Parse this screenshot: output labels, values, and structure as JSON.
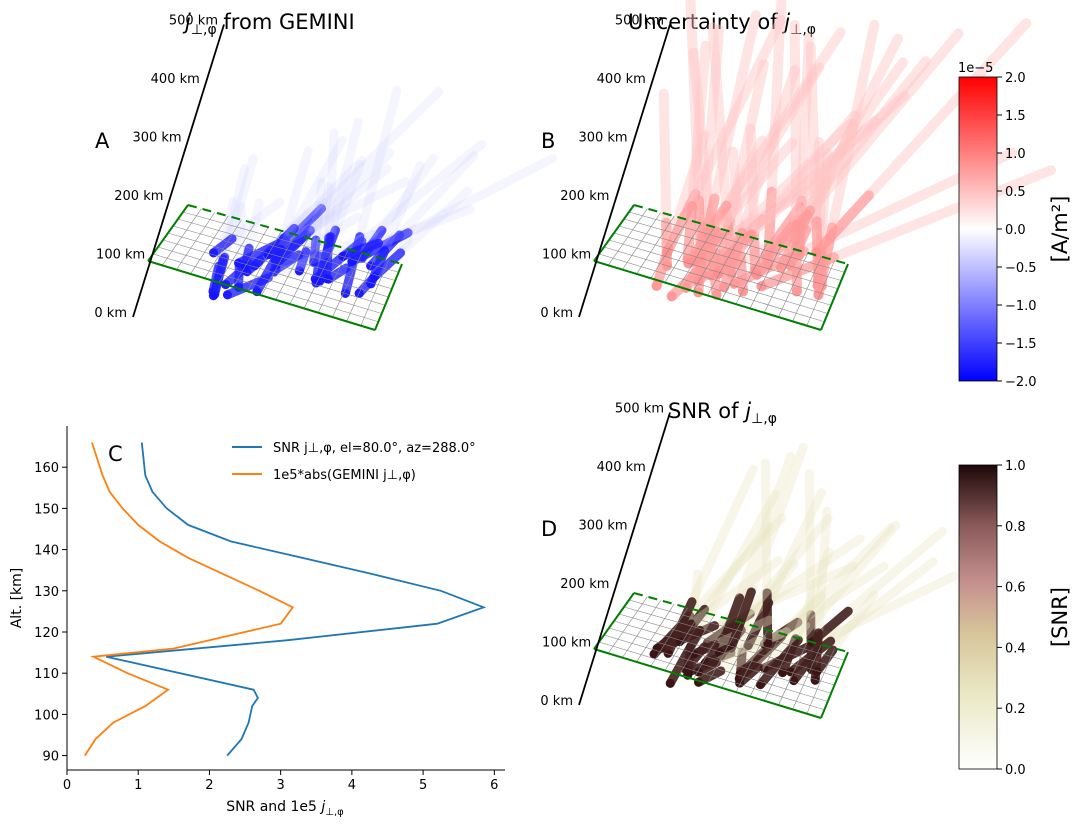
{
  "panels": {
    "A": {
      "letter": "A",
      "title_main": "j",
      "title_sub": "⊥,φ",
      "title_rest": " from GEMINI"
    },
    "B": {
      "letter": "B",
      "title_main": "Uncertainty of ",
      "title_var": "j",
      "title_sub": "⊥,φ"
    },
    "C": {
      "letter": "C"
    },
    "D": {
      "letter": "D",
      "title_main": "SNR of ",
      "title_var": "j",
      "title_sub": "⊥,φ"
    }
  },
  "altitude_labels": [
    "0 km",
    "100 km",
    "200 km",
    "300 km",
    "400 km",
    "500 km"
  ],
  "colorbars": {
    "current": {
      "label": "[A/m²]",
      "offset_text": "1e−5",
      "ticks": [
        "−2.0",
        "−1.5",
        "−1.0",
        "−0.5",
        "0.0",
        "0.5",
        "1.0",
        "1.5",
        "2.0"
      ],
      "range": [
        -2.0,
        2.0
      ],
      "colormap": "bwr",
      "colors": [
        "#0000ff",
        "#ffffff",
        "#ff0000"
      ]
    },
    "snr": {
      "label": "[SNR]",
      "ticks": [
        "0.0",
        "0.2",
        "0.4",
        "0.6",
        "0.8",
        "1.0"
      ],
      "range": [
        0.0,
        1.0
      ],
      "colormap": "pink_r",
      "colors": [
        "#ffffff",
        "#e6e4b4",
        "#c49090",
        "#8a5c5c",
        "#1e0808"
      ]
    }
  },
  "grid_color": "#008000",
  "chart_data": {
    "type": "line",
    "xlabel": "SNR and 1e5 j⊥,φ",
    "ylabel": "Alt. [km]",
    "xlim": [
      0,
      6.15
    ],
    "ylim": [
      86.5,
      170
    ],
    "xticks": [
      0,
      1,
      2,
      3,
      4,
      5,
      6
    ],
    "yticks": [
      90,
      100,
      110,
      120,
      130,
      140,
      150,
      160
    ],
    "legend_position": "top-right",
    "series": [
      {
        "name": "SNR j⊥,φ, el=80.0°, az=288.0°",
        "color": "#1f77b4",
        "x": [
          2.25,
          2.45,
          2.55,
          2.6,
          2.68,
          2.62,
          0.55,
          3.1,
          5.2,
          5.85,
          5.25,
          4.3,
          3.3,
          2.3,
          1.7,
          1.4,
          1.2,
          1.1,
          1.05
        ],
        "y": [
          90,
          94,
          98,
          102,
          104,
          106,
          114,
          118,
          122,
          126,
          130,
          134,
          138,
          142,
          146,
          150,
          154,
          158,
          166
        ]
      },
      {
        "name": "1e5*abs(GEMINI j⊥,φ)",
        "color": "#ff7f0e",
        "x": [
          0.25,
          0.4,
          0.65,
          1.1,
          1.42,
          0.85,
          0.37,
          1.5,
          2.0,
          3.0,
          3.17,
          2.7,
          2.2,
          1.7,
          1.3,
          1.0,
          0.78,
          0.6,
          0.5,
          0.35
        ],
        "y": [
          90,
          94,
          98,
          102,
          106,
          110,
          114,
          116,
          118,
          122,
          126,
          130,
          134,
          138,
          142,
          146,
          150,
          154,
          158,
          166
        ]
      }
    ]
  }
}
